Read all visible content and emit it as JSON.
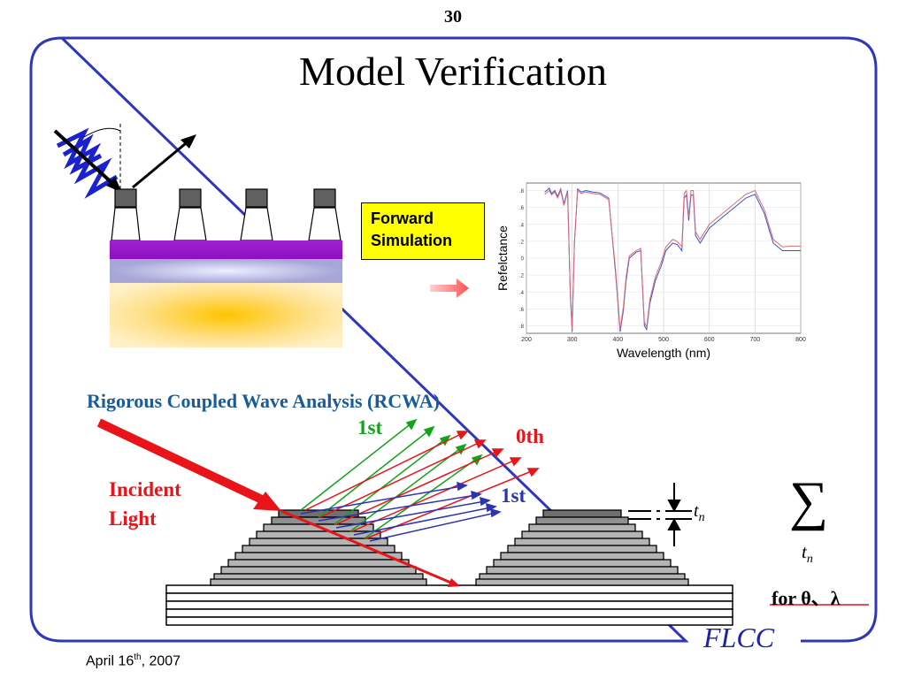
{
  "slide": {
    "page_number": "30",
    "title": "Model Verification",
    "date_main": "April 16",
    "date_sup": "th",
    "date_year": ", 2007",
    "logo": "FLCC"
  },
  "forward_box": {
    "line1": "Forward",
    "line2": "Simulation"
  },
  "chart_data": {
    "type": "line",
    "ylabel": "Refelctance",
    "xlabel": "Wavelength (nm)",
    "xlim": [
      200,
      800
    ],
    "x_ticks": [
      "200",
      "300",
      "400",
      "500",
      "600",
      "700",
      "800"
    ],
    "y_ticks": [
      ".8",
      ".6",
      ".4",
      ".2",
      "0",
      ".2",
      ".4",
      ".6",
      ".8"
    ],
    "grid": true,
    "series": [
      {
        "color": "#3a52c8",
        "x": [
          240,
          250,
          255,
          262,
          268,
          275,
          282,
          290,
          296,
          300,
          305,
          312,
          320,
          330,
          345,
          360,
          380,
          395,
          405,
          412,
          418,
          425,
          440,
          450,
          458,
          463,
          470,
          482,
          495,
          505,
          520,
          530,
          540,
          545,
          550,
          555,
          560,
          565,
          570,
          580,
          600,
          620,
          640,
          660,
          680,
          700,
          720,
          740,
          760,
          780,
          800
        ],
        "y": [
          0.88,
          0.93,
          0.86,
          0.9,
          0.82,
          0.92,
          0.72,
          0.9,
          -0.5,
          -0.98,
          0.2,
          0.92,
          0.88,
          0.9,
          0.88,
          0.87,
          0.8,
          -0.2,
          -0.98,
          -0.7,
          -0.3,
          0.0,
          0.08,
          0.1,
          -0.9,
          -0.95,
          -0.6,
          -0.3,
          -0.1,
          0.1,
          0.2,
          0.18,
          0.1,
          0.8,
          0.84,
          0.5,
          0.84,
          0.84,
          0.3,
          0.2,
          0.4,
          0.5,
          0.6,
          0.7,
          0.8,
          0.85,
          0.6,
          0.2,
          0.1,
          0.1,
          0.1
        ]
      },
      {
        "color": "#d86a78",
        "x": [
          240,
          250,
          255,
          262,
          268,
          275,
          282,
          290,
          296,
          300,
          305,
          312,
          320,
          330,
          345,
          360,
          380,
          395,
          405,
          412,
          418,
          425,
          440,
          450,
          458,
          463,
          470,
          482,
          495,
          505,
          520,
          530,
          540,
          545,
          550,
          555,
          560,
          565,
          570,
          580,
          600,
          620,
          640,
          660,
          680,
          700,
          720,
          740,
          760,
          780,
          800
        ],
        "y": [
          0.85,
          0.9,
          0.84,
          0.88,
          0.8,
          0.9,
          0.7,
          0.88,
          -0.45,
          -0.95,
          0.22,
          0.9,
          0.86,
          0.88,
          0.86,
          0.85,
          0.78,
          -0.15,
          -0.95,
          -0.65,
          -0.25,
          0.03,
          0.1,
          0.13,
          -0.85,
          -0.92,
          -0.55,
          -0.25,
          -0.05,
          0.15,
          0.25,
          0.22,
          0.15,
          0.86,
          0.9,
          0.55,
          0.9,
          0.9,
          0.35,
          0.25,
          0.45,
          0.55,
          0.65,
          0.75,
          0.85,
          0.9,
          0.65,
          0.25,
          0.15,
          0.16,
          0.16
        ]
      }
    ]
  },
  "rcwa": {
    "title": "Rigorous Coupled Wave Analysis (RCWA)",
    "incident_line1": "Incident",
    "incident_line2": "Light",
    "order_1st_top": "1st",
    "order_0th": "0th",
    "order_1st_bottom": "1st",
    "tn_base": "t",
    "tn_sub": "n",
    "sum_symbol": "∑",
    "for_label": "for θ、λ"
  },
  "colors": {
    "frame": "#2f37b8",
    "red": "#e8141a",
    "green": "#11a41a",
    "blue": "#2b34b0",
    "purple": "#9b10c8",
    "box_yellow": "#ffff00"
  }
}
